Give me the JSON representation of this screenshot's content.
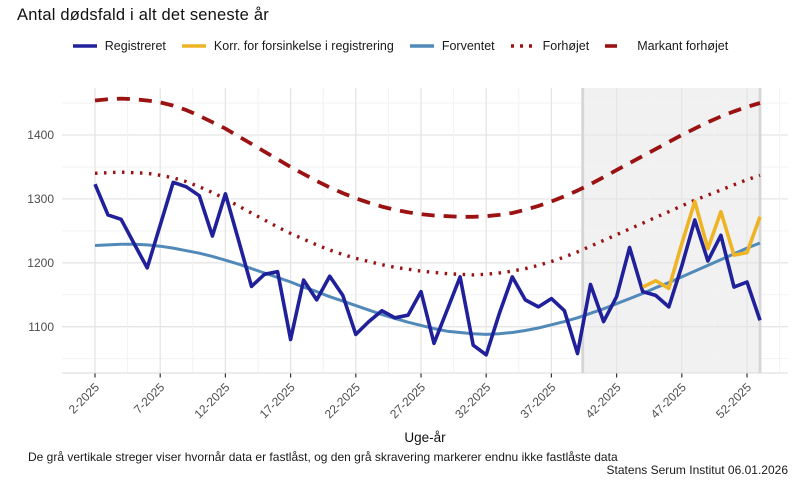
{
  "title": "Antal dødsfald i alt det seneste år",
  "footer": {
    "note": "De grå vertikale streger viser hvornår data er fastlåst, og den grå skravering markerer endnu ikke fastlåste data",
    "source": "Statens Serum Institut  06.01.2026"
  },
  "chart_data": {
    "type": "line",
    "title": "Antal dødsfald i alt det seneste år",
    "xlabel": "Uge-år",
    "ylabel": "",
    "x_unit": "uge (ISO-uge nummer - år)",
    "weeks": {
      "start": 2,
      "end": 53,
      "step": 1
    },
    "x_ticks": [
      {
        "week": 2,
        "label": "2-2025"
      },
      {
        "week": 7,
        "label": "7-2025"
      },
      {
        "week": 12,
        "label": "12-2025"
      },
      {
        "week": 17,
        "label": "17-2025"
      },
      {
        "week": 22,
        "label": "22-2025"
      },
      {
        "week": 27,
        "label": "27-2025"
      },
      {
        "week": 32,
        "label": "32-2025"
      },
      {
        "week": 37,
        "label": "37-2025"
      },
      {
        "week": 42,
        "label": "42-2025"
      },
      {
        "week": 47,
        "label": "47-2025"
      },
      {
        "week": 52,
        "label": "52-2025"
      }
    ],
    "y_ticks": [
      1100,
      1200,
      1300,
      1400
    ],
    "ylim": [
      1030,
      1475
    ],
    "grid": "on",
    "legend_position": "top-center",
    "shaded_region": {
      "start_week": 39.4,
      "end_week": 53,
      "color": "#F1F1F1",
      "meaning": "endnu ikke fastlåste data"
    },
    "locked_marker_lines_weeks": [
      39.4,
      53
    ],
    "locked_marker_line_color": "#D6D6D6",
    "series": [
      {
        "name": "Registreret",
        "color": "#20209B",
        "style": "solid",
        "width": 3.6,
        "start_week": 2,
        "values": [
          1323,
          1275,
          1268,
          1230,
          1192,
          1259,
          1326,
          1319,
          1305,
          1242,
          1308,
          1236,
          1163,
          1182,
          1186,
          1080,
          1173,
          1142,
          1179,
          1149,
          1088,
          1108,
          1125,
          1114,
          1118,
          1155,
          1074,
          1126,
          1178,
          1071,
          1056,
          1120,
          1178,
          1142,
          1131,
          1144,
          1125,
          1058,
          1166,
          1108,
          1147,
          1224,
          1155,
          1149,
          1131,
          1195,
          1267,
          1203,
          1243,
          1162,
          1170,
          1110
        ]
      },
      {
        "name": "Korr. for forsinkelse i registrering",
        "color": "#EFB326",
        "style": "solid",
        "width": 3.6,
        "start_week": 44,
        "values": [
          1162,
          1172,
          1160,
          1230,
          1296,
          1222,
          1280,
          1212,
          1216,
          1272
        ]
      },
      {
        "name": "Forventet",
        "color": "#5189B8",
        "style": "solid",
        "width": 3,
        "start_week": 2,
        "values": [
          1227,
          1228,
          1229,
          1229,
          1228,
          1226,
          1223,
          1219,
          1215,
          1210,
          1204,
          1198,
          1191,
          1184,
          1177,
          1170,
          1162,
          1155,
          1147,
          1140,
          1133,
          1126,
          1119,
          1113,
          1107,
          1102,
          1097,
          1093,
          1091,
          1089,
          1088,
          1089,
          1091,
          1094,
          1098,
          1103,
          1108,
          1114,
          1121,
          1128,
          1136,
          1144,
          1152,
          1161,
          1169,
          1178,
          1187,
          1196,
          1205,
          1214,
          1223,
          1231
        ]
      },
      {
        "name": "Forhøjet",
        "color": "#9B1212",
        "style": "dotted",
        "width": 3.4,
        "start_week": 2,
        "values": [
          1340,
          1341,
          1342,
          1341,
          1340,
          1337,
          1333,
          1327,
          1319,
          1310,
          1300,
          1289,
          1278,
          1267,
          1256,
          1246,
          1237,
          1228,
          1220,
          1213,
          1207,
          1202,
          1197,
          1193,
          1190,
          1187,
          1185,
          1183,
          1182,
          1181,
          1182,
          1184,
          1187,
          1191,
          1196,
          1202,
          1209,
          1217,
          1226,
          1235,
          1244,
          1253,
          1262,
          1271,
          1280,
          1289,
          1298,
          1306,
          1314,
          1322,
          1330,
          1337
        ]
      },
      {
        "name": "Markant forhøjet",
        "color": "#9B1212",
        "style": "dashed",
        "width": 3.8,
        "start_week": 2,
        "values": [
          1454,
          1456,
          1457,
          1456,
          1454,
          1451,
          1446,
          1439,
          1430,
          1420,
          1410,
          1398,
          1386,
          1374,
          1362,
          1350,
          1339,
          1328,
          1318,
          1309,
          1301,
          1294,
          1288,
          1283,
          1279,
          1276,
          1274,
          1273,
          1272,
          1272,
          1273,
          1275,
          1278,
          1283,
          1289,
          1296,
          1304,
          1313,
          1323,
          1334,
          1345,
          1356,
          1367,
          1378,
          1389,
          1400,
          1410,
          1420,
          1429,
          1437,
          1444,
          1450
        ]
      }
    ]
  }
}
